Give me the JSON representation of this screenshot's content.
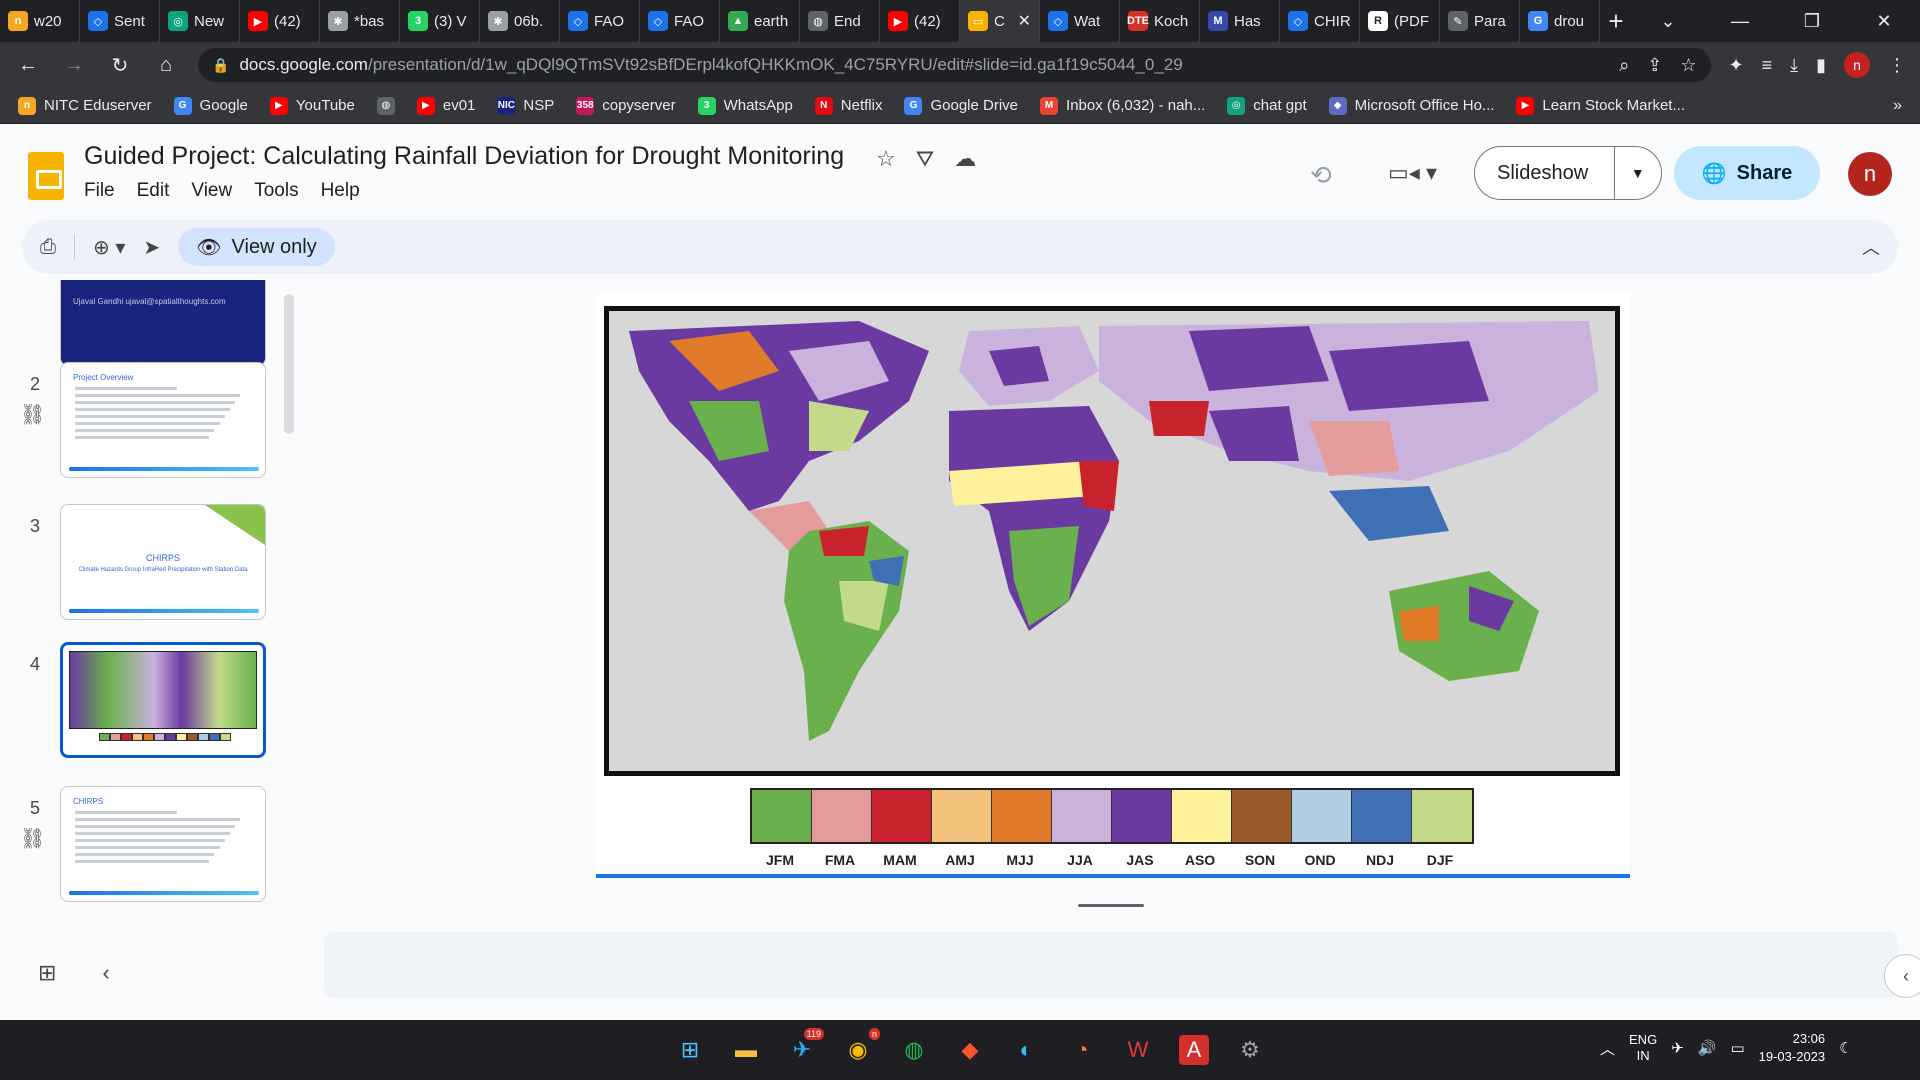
{
  "browser": {
    "tabs": [
      {
        "label": "w20",
        "icon": "nitc-icon",
        "color": "#f5a623",
        "glyph": "n"
      },
      {
        "label": "Sent",
        "icon": "earth-engine-icon",
        "color": "#1a73e8",
        "glyph": "◇"
      },
      {
        "label": "New",
        "icon": "chatgpt-icon",
        "color": "#10a37f",
        "glyph": "◎"
      },
      {
        "label": "(42)",
        "icon": "youtube-icon",
        "color": "#ff0000",
        "glyph": "▶"
      },
      {
        "label": "*bas",
        "icon": "colab-icon",
        "color": "#9aa0a6",
        "glyph": "✱"
      },
      {
        "label": "(3) V",
        "icon": "whatsapp-icon",
        "color": "#25d366",
        "glyph": "3"
      },
      {
        "label": "06b.",
        "icon": "colab-icon",
        "color": "#9aa0a6",
        "glyph": "✱"
      },
      {
        "label": "FAO",
        "icon": "earth-engine-icon",
        "color": "#1a73e8",
        "glyph": "◇"
      },
      {
        "label": "FAO",
        "icon": "earth-engine-icon",
        "color": "#1a73e8",
        "glyph": "◇"
      },
      {
        "label": "earth",
        "icon": "google-drive-icon",
        "color": "#34a853",
        "glyph": "▲"
      },
      {
        "label": "End",
        "icon": "globe-icon",
        "color": "#5f6368",
        "glyph": "◍"
      },
      {
        "label": "(42)",
        "icon": "youtube-icon",
        "color": "#ff0000",
        "glyph": "▶"
      },
      {
        "label": "C",
        "icon": "google-slides-icon",
        "color": "#f4b400",
        "glyph": "▭",
        "active": true
      },
      {
        "label": "Wat",
        "icon": "earth-engine-icon",
        "color": "#1a73e8",
        "glyph": "◇"
      },
      {
        "label": "Koch",
        "icon": "dte-icon",
        "color": "#d93025",
        "glyph": "DTE"
      },
      {
        "label": "Has",
        "icon": "m-icon",
        "color": "#3949ab",
        "glyph": "M"
      },
      {
        "label": "CHIR",
        "icon": "earth-engine-icon",
        "color": "#1a73e8",
        "glyph": "◇"
      },
      {
        "label": "(PDF",
        "icon": "researchgate-icon",
        "color": "#ffffff",
        "glyph": "R"
      },
      {
        "label": "Para",
        "icon": "pen-icon",
        "color": "#5f6368",
        "glyph": "✎"
      },
      {
        "label": "drou",
        "icon": "google-icon",
        "color": "#4285f4",
        "glyph": "G"
      }
    ],
    "url_host": "docs.google.com",
    "url_path": "/presentation/d/1w_qDQl9QTmSVt92sBfDErpl4kofQHKKmOK_4C75RYRU/edit#slide=id.ga1f19c5044_0_29",
    "profile_initial": "n",
    "bookmarks": [
      {
        "label": "NITC Eduserver",
        "icon": "nitc-icon",
        "color": "#f5a623",
        "glyph": "n"
      },
      {
        "label": "Google",
        "icon": "google-icon",
        "color": "#4285f4",
        "glyph": "G"
      },
      {
        "label": "YouTube",
        "icon": "youtube-icon",
        "color": "#ff0000",
        "glyph": "▶"
      },
      {
        "label": "",
        "icon": "globe-icon",
        "color": "#5f6368",
        "glyph": "◍"
      },
      {
        "label": "ev01",
        "icon": "youtube-icon",
        "color": "#ff0000",
        "glyph": "▶"
      },
      {
        "label": "NSP",
        "icon": "nic-icon",
        "color": "#1a237e",
        "glyph": "NIC"
      },
      {
        "label": "copyserver",
        "icon": "copyserver-icon",
        "color": "#c2185b",
        "glyph": "358"
      },
      {
        "label": "WhatsApp",
        "icon": "whatsapp-icon",
        "color": "#25d366",
        "glyph": "3"
      },
      {
        "label": "Netflix",
        "icon": "netflix-icon",
        "color": "#e50914",
        "glyph": "N"
      },
      {
        "label": "Google Drive",
        "icon": "google-icon",
        "color": "#4285f4",
        "glyph": "G"
      },
      {
        "label": "Inbox (6,032) - nah...",
        "icon": "gmail-icon",
        "color": "#ea4335",
        "glyph": "M"
      },
      {
        "label": "chat gpt",
        "icon": "chatgpt-icon",
        "color": "#10a37f",
        "glyph": "◎"
      },
      {
        "label": "Microsoft Office Ho...",
        "icon": "office-icon",
        "color": "#5c6bc0",
        "glyph": "◆"
      },
      {
        "label": "Learn Stock Market...",
        "icon": "youtube-icon",
        "color": "#ff0000",
        "glyph": "▶"
      }
    ],
    "bookmarks_more": "»"
  },
  "slides": {
    "title": "Guided Project: Calculating Rainfall Deviation for Drought Monitoring",
    "menu": [
      "File",
      "Edit",
      "View",
      "Tools",
      "Help"
    ],
    "slideshow_label": "Slideshow",
    "share_label": "Share",
    "user_initial": "n",
    "view_only_label": "View only",
    "thumbnails": [
      {
        "num": "",
        "title": "Ujaval Gandhi ujaval@spatialthoughts.com",
        "kind": "cover"
      },
      {
        "num": "2",
        "title": "Project Overview",
        "kind": "text",
        "linked": true
      },
      {
        "num": "3",
        "title": "CHIRPS",
        "subtitle": "Climate Hazards Group InfraRed Precipitation with Station Data",
        "kind": "section"
      },
      {
        "num": "4",
        "title": "",
        "kind": "map",
        "active": true
      },
      {
        "num": "5",
        "title": "CHIRPS",
        "kind": "text",
        "linked": true
      }
    ]
  },
  "legend": {
    "seasons": [
      "JFM",
      "FMA",
      "MAM",
      "AMJ",
      "MJJ",
      "JJA",
      "JAS",
      "ASO",
      "SON",
      "OND",
      "NDJ",
      "DJF"
    ],
    "colors": [
      "#6ab04c",
      "#e39b9b",
      "#c8232c",
      "#f3c27b",
      "#e07b2a",
      "#c9b2dc",
      "#6a3aa0",
      "#fbf29b",
      "#9c5a2a",
      "#b0cde6",
      "#3f6fb5",
      "#c2da8a"
    ]
  },
  "taskbar": {
    "telegram_badge": "119",
    "chrome_badge": "n",
    "lang_line1": "ENG",
    "lang_line2": "IN",
    "time": "23:06",
    "date": "19-03-2023"
  }
}
